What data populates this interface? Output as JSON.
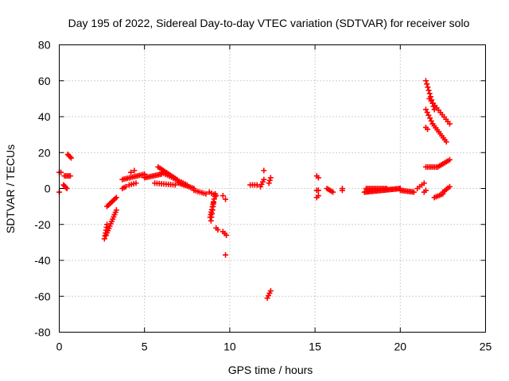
{
  "chart_data": {
    "type": "scatter",
    "title": "Day 195 of 2022, Sidereal Day-to-day VTEC variation (SDTVAR) for receiver solo",
    "xlabel": "GPS time / hours",
    "ylabel": "SDTVAR / TECUs",
    "xlim": [
      0,
      25
    ],
    "ylim": [
      -80,
      80
    ],
    "xticks": [
      0,
      5,
      10,
      15,
      20,
      25
    ],
    "yticks": [
      -80,
      -60,
      -40,
      -20,
      0,
      20,
      40,
      60,
      80
    ],
    "xtick_labels": [
      "0",
      "5",
      "10",
      "15",
      "20",
      "25"
    ],
    "ytick_labels": [
      "-80",
      "-60",
      "-40",
      "-20",
      "0",
      "20",
      "40",
      "60",
      "80"
    ],
    "grid": true,
    "marker": "+",
    "marker_color": "#ff0000",
    "segments": [
      {
        "x0": 0.0,
        "y0": 9,
        "x1": 0.1,
        "y1": 9,
        "n": 2
      },
      {
        "x0": 0.0,
        "y0": -2,
        "x1": 0.05,
        "y1": -2,
        "n": 1
      },
      {
        "x0": 0.25,
        "y0": 2,
        "x1": 0.45,
        "y1": 0,
        "n": 4
      },
      {
        "x0": 0.3,
        "y0": 7,
        "x1": 0.65,
        "y1": 7,
        "n": 5
      },
      {
        "x0": 0.5,
        "y0": 19,
        "x1": 0.7,
        "y1": 17,
        "n": 4
      },
      {
        "x0": 2.65,
        "y0": -28,
        "x1": 2.8,
        "y1": -20,
        "n": 6
      },
      {
        "x0": 2.75,
        "y0": -26,
        "x1": 3.35,
        "y1": -12,
        "n": 12
      },
      {
        "x0": 2.8,
        "y0": -10,
        "x1": 3.35,
        "y1": -5,
        "n": 8
      },
      {
        "x0": 3.7,
        "y0": 0,
        "x1": 3.9,
        "y1": 1,
        "n": 3
      },
      {
        "x0": 3.7,
        "y0": 5,
        "x1": 5.0,
        "y1": 8,
        "n": 14
      },
      {
        "x0": 4.1,
        "y0": 2,
        "x1": 4.5,
        "y1": 3,
        "n": 4
      },
      {
        "x0": 4.2,
        "y0": 9,
        "x1": 4.4,
        "y1": 10,
        "n": 2
      },
      {
        "x0": 5.0,
        "y0": 6,
        "x1": 6.0,
        "y1": 8,
        "n": 12
      },
      {
        "x0": 5.8,
        "y0": 12,
        "x1": 6.9,
        "y1": 5,
        "n": 12
      },
      {
        "x0": 5.6,
        "y0": 3,
        "x1": 6.8,
        "y1": 2,
        "n": 10
      },
      {
        "x0": 6.0,
        "y0": 9,
        "x1": 7.5,
        "y1": 2,
        "n": 14
      },
      {
        "x0": 7.0,
        "y0": 3,
        "x1": 7.9,
        "y1": 0,
        "n": 10
      },
      {
        "x0": 7.9,
        "y0": -1,
        "x1": 8.6,
        "y1": -3,
        "n": 7
      },
      {
        "x0": 8.8,
        "y0": -2,
        "x1": 9.2,
        "y1": -4,
        "n": 4
      },
      {
        "x0": 8.85,
        "y0": -16,
        "x1": 9.15,
        "y1": -3,
        "n": 10
      },
      {
        "x0": 8.9,
        "y0": -18,
        "x1": 9.05,
        "y1": -8,
        "n": 6
      },
      {
        "x0": 9.2,
        "y0": -22,
        "x1": 9.3,
        "y1": -23,
        "n": 2
      },
      {
        "x0": 9.6,
        "y0": -4,
        "x1": 9.75,
        "y1": -6,
        "n": 2
      },
      {
        "x0": 9.6,
        "y0": -24,
        "x1": 9.8,
        "y1": -26,
        "n": 3
      },
      {
        "x0": 9.75,
        "y0": -37,
        "x1": 9.75,
        "y1": -37,
        "n": 1
      },
      {
        "x0": 11.2,
        "y0": 2,
        "x1": 11.6,
        "y1": 2,
        "n": 4
      },
      {
        "x0": 11.8,
        "y0": 1,
        "x1": 12.0,
        "y1": 5,
        "n": 4
      },
      {
        "x0": 12.0,
        "y0": 10,
        "x1": 12.0,
        "y1": 10,
        "n": 1
      },
      {
        "x0": 12.3,
        "y0": 3,
        "x1": 12.4,
        "y1": 6,
        "n": 3
      },
      {
        "x0": 12.2,
        "y0": -61,
        "x1": 12.4,
        "y1": -57,
        "n": 4
      },
      {
        "x0": 15.1,
        "y0": 7,
        "x1": 15.2,
        "y1": 6,
        "n": 2
      },
      {
        "x0": 15.1,
        "y0": -1,
        "x1": 15.2,
        "y1": -1,
        "n": 2
      },
      {
        "x0": 15.1,
        "y0": -5,
        "x1": 15.2,
        "y1": -4,
        "n": 2
      },
      {
        "x0": 15.7,
        "y0": 0,
        "x1": 16.05,
        "y1": -2,
        "n": 5
      },
      {
        "x0": 16.6,
        "y0": 0,
        "x1": 16.6,
        "y1": -1,
        "n": 2
      },
      {
        "x0": 17.9,
        "y0": -2,
        "x1": 20.0,
        "y1": 0,
        "n": 28
      },
      {
        "x0": 18.0,
        "y0": 0,
        "x1": 19.2,
        "y1": 0,
        "n": 14
      },
      {
        "x0": 20.0,
        "y0": -1,
        "x1": 20.8,
        "y1": -2,
        "n": 10
      },
      {
        "x0": 21.0,
        "y0": 0,
        "x1": 21.4,
        "y1": 3,
        "n": 4
      },
      {
        "x0": 21.5,
        "y0": 60,
        "x1": 22.0,
        "y1": 44,
        "n": 10
      },
      {
        "x0": 21.7,
        "y0": 50,
        "x1": 22.9,
        "y1": 36,
        "n": 12
      },
      {
        "x0": 21.5,
        "y0": 44,
        "x1": 21.9,
        "y1": 36,
        "n": 6
      },
      {
        "x0": 21.9,
        "y0": 36,
        "x1": 22.7,
        "y1": 26,
        "n": 10
      },
      {
        "x0": 21.5,
        "y0": 34,
        "x1": 21.6,
        "y1": 33,
        "n": 2
      },
      {
        "x0": 21.5,
        "y0": 12,
        "x1": 22.2,
        "y1": 12,
        "n": 8
      },
      {
        "x0": 22.2,
        "y0": 12,
        "x1": 22.9,
        "y1": 16,
        "n": 8
      },
      {
        "x0": 21.4,
        "y0": -2,
        "x1": 21.5,
        "y1": -1,
        "n": 2
      },
      {
        "x0": 22.0,
        "y0": -5,
        "x1": 22.5,
        "y1": -3,
        "n": 6
      },
      {
        "x0": 22.5,
        "y0": -2,
        "x1": 22.9,
        "y1": 1,
        "n": 5
      }
    ]
  }
}
